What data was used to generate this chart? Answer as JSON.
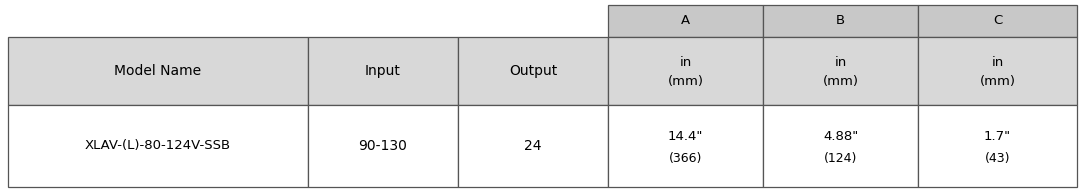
{
  "background_color": "#ffffff",
  "header_bg": "#c8c8c8",
  "cell_bg": "#d8d8d8",
  "data_bg": "#ffffff",
  "border_color": "#555555",
  "text_color": "#000000",
  "col_headers_top": [
    "A",
    "B",
    "C"
  ],
  "col_headers_mid": [
    "Model Name",
    "Input",
    "Output"
  ],
  "unit_line1": "in",
  "unit_line2": "(mm)",
  "model_name": "XLAV-(L)-80-124V-SSB",
  "input_val": "90-130",
  "output_val": "24",
  "A_line1": "14.4\"",
  "A_line2": "(366)",
  "B_line1": "4.88\"",
  "B_line2": "(124)",
  "C_line1": "1.7\"",
  "C_line2": "(43)",
  "fig_width": 10.85,
  "fig_height": 1.95,
  "dpi": 100
}
